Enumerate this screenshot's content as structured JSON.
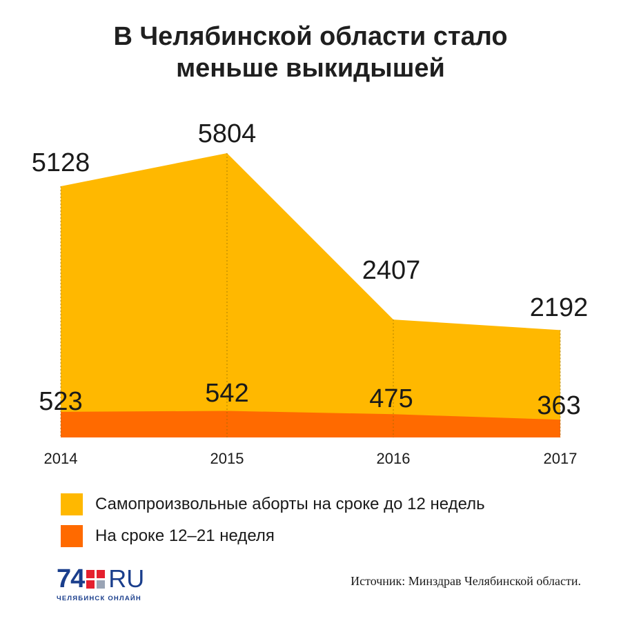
{
  "title_lines": [
    "В Челябинской области стало",
    "меньше выкидышей"
  ],
  "chart_data": {
    "type": "area",
    "title": "В Челябинской области стало меньше выкидышей",
    "categories": [
      "2014",
      "2015",
      "2016",
      "2017"
    ],
    "series": [
      {
        "name": "Самопроизвольные аборты на сроке до 12 недель",
        "values": [
          5128,
          5804,
          2407,
          2192
        ],
        "color": "#FFB800"
      },
      {
        "name": "На сроке 12–21 неделя",
        "values": [
          523,
          542,
          475,
          363
        ],
        "color": "#FF6A00"
      }
    ],
    "grid": false,
    "legend_position": "bottom"
  },
  "legend": [
    {
      "label": "Самопроизвольные аборты на сроке до 12 недель",
      "color": "#FFB800"
    },
    {
      "label": "На сроке 12–21 неделя",
      "color": "#FF6A00"
    }
  ],
  "logo": {
    "number": "74",
    "suffix": "RU",
    "subtitle": "ЧЕЛЯБИНСК ОНЛАЙН",
    "colors": [
      "#E5202E",
      "#E5202E",
      "#E5202E",
      "#9aa4b5"
    ],
    "text_color": "#1a3e8c"
  },
  "source": "Источник: Минздрав Челябинской области."
}
